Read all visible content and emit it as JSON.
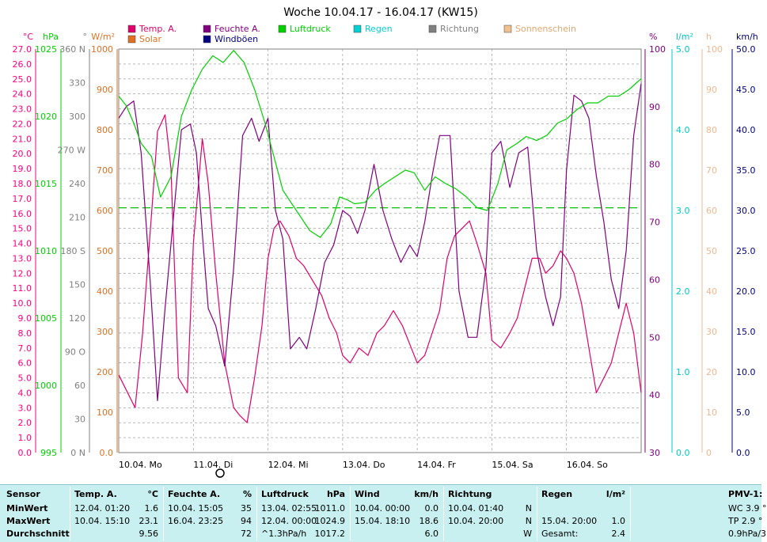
{
  "chart_data": {
    "type": "line",
    "title": "Woche 10.04.17 - 16.04.17 (KW15)",
    "x_labels": [
      "10.04. Mo",
      "11.04. Di",
      "12.04. Mi",
      "13.04. Do",
      "14.04. Fr",
      "15.04. Sa",
      "16.04. So"
    ],
    "axes": [
      {
        "unit": "°C",
        "color": "#ff0080",
        "range": [
          0,
          27
        ],
        "ticks": [
          "0.0",
          "1.0",
          "2.0",
          "3.0",
          "4.0",
          "5.0",
          "6.0",
          "7.0",
          "8.0",
          "9.0",
          "10.0",
          "11.0",
          "12.0",
          "13.0",
          "14.0",
          "15.0",
          "16.0",
          "17.0",
          "18.0",
          "19.0",
          "20.0",
          "21.0",
          "22.0",
          "23.0",
          "24.0",
          "25.0",
          "26.0",
          "27.0"
        ]
      },
      {
        "unit": "hPa",
        "color": "#00d000",
        "range": [
          995,
          1025
        ],
        "ticks": [
          "995",
          "1000",
          "1005",
          "1010",
          "1015",
          "1020",
          "1025"
        ]
      },
      {
        "unit": "°",
        "color": "#808080",
        "range": [
          0,
          360
        ],
        "ticks": [
          "0 N",
          "30",
          "60",
          "90 O",
          "120",
          "150",
          "180 S",
          "210",
          "240",
          "270 W",
          "300",
          "330",
          "360 N"
        ]
      },
      {
        "unit": "W/m²",
        "color": "#e07020",
        "range": [
          0,
          1000
        ],
        "ticks": [
          "0.0",
          "100",
          "200",
          "300",
          "400",
          "500",
          "600",
          "700",
          "800",
          "900",
          "1000"
        ]
      },
      {
        "unit": "%",
        "color": "#800080",
        "range": [
          30,
          100
        ],
        "ticks": [
          "30",
          "40",
          "50",
          "60",
          "70",
          "80",
          "90",
          "100"
        ]
      },
      {
        "unit": "l/m²",
        "color": "#00c8c8",
        "range": [
          0,
          5
        ],
        "ticks": [
          "0.0",
          "1.0",
          "2.0",
          "3.0",
          "4.0",
          "5.0"
        ]
      },
      {
        "unit": "h",
        "color": "#f0b890",
        "range": [
          0,
          100
        ],
        "ticks": [
          "0",
          "10",
          "20",
          "30",
          "40",
          "50",
          "60",
          "70",
          "80",
          "90",
          "100"
        ]
      },
      {
        "unit": "km/h",
        "color": "#000080",
        "range": [
          0,
          50
        ],
        "ticks": [
          "0.0",
          "5.0",
          "10.0",
          "15.0",
          "20.0",
          "25.0",
          "30.0",
          "35.0",
          "40.0",
          "45.0",
          "50.0"
        ]
      }
    ],
    "legend": [
      {
        "name": "Temp. A.",
        "color": "#e0006a"
      },
      {
        "name": "Solar",
        "color": "#e07020"
      },
      {
        "name": "Feuchte A.",
        "color": "#800080"
      },
      {
        "name": "Windböen",
        "color": "#000080"
      },
      {
        "name": "Luftdruck",
        "color": "#00d000"
      },
      {
        "name": "Regen",
        "color": "#00d0d0"
      },
      {
        "name": "Richtung",
        "color": "#808080"
      },
      {
        "name": "Sonnenschein",
        "color": "#f0c090"
      }
    ],
    "reference_line": {
      "series": "Luftdruck",
      "value": 1013.2
    },
    "series": [
      {
        "name": "Temp. A.",
        "axis": "°C",
        "x": [
          0,
          0.1,
          0.22,
          0.32,
          0.44,
          0.52,
          0.62,
          0.7,
          0.8,
          0.92,
          1.0,
          1.12,
          1.2,
          1.3,
          1.42,
          1.54,
          1.62,
          1.72,
          1.82,
          1.92,
          2.0,
          2.08,
          2.16,
          2.28,
          2.38,
          2.48,
          2.6,
          2.72,
          2.82,
          2.92,
          3.0,
          3.1,
          3.22,
          3.34,
          3.46,
          3.56,
          3.68,
          3.8,
          3.92,
          4.0,
          4.1,
          4.2,
          4.3,
          4.4,
          4.5,
          4.6,
          4.7,
          4.8,
          4.92,
          5.0,
          5.12,
          5.24,
          5.34,
          5.44,
          5.54,
          5.64,
          5.72,
          5.82,
          5.92,
          6.0,
          6.1,
          6.2,
          6.3,
          6.4,
          6.5,
          6.6,
          6.7,
          6.8,
          6.9,
          7.0
        ],
        "y": [
          5.2,
          4.2,
          3.0,
          8.0,
          16.0,
          21.5,
          22.6,
          19.0,
          5.0,
          4.0,
          14.0,
          21.0,
          18.0,
          12.0,
          6.0,
          3.0,
          2.5,
          2.0,
          5.0,
          8.5,
          13.0,
          15.0,
          15.5,
          14.5,
          13.0,
          12.5,
          11.5,
          10.5,
          9.0,
          8.0,
          6.5,
          6.0,
          7.0,
          6.5,
          8.0,
          8.5,
          9.5,
          8.5,
          7.0,
          6.0,
          6.5,
          8.0,
          9.5,
          13.0,
          14.5,
          15.0,
          15.5,
          14.0,
          12.0,
          7.5,
          7.0,
          8.0,
          9.0,
          11.0,
          13.0,
          13.0,
          12.0,
          12.5,
          13.5,
          13.0,
          12.0,
          10.0,
          7.0,
          4.0,
          5.0,
          6.0,
          8.0,
          10.0,
          8.0,
          4.0
        ]
      },
      {
        "name": "Feuchte A.",
        "axis": "%",
        "x": [
          0,
          0.1,
          0.2,
          0.3,
          0.42,
          0.52,
          0.62,
          0.72,
          0.84,
          0.96,
          1.04,
          1.12,
          1.2,
          1.3,
          1.42,
          1.54,
          1.66,
          1.78,
          1.88,
          2.0,
          2.1,
          2.2,
          2.3,
          2.42,
          2.52,
          2.64,
          2.76,
          2.88,
          3.0,
          3.1,
          3.2,
          3.3,
          3.42,
          3.54,
          3.66,
          3.78,
          3.9,
          4.0,
          4.1,
          4.2,
          4.3,
          4.44,
          4.56,
          4.68,
          4.8,
          4.92,
          5.0,
          5.12,
          5.24,
          5.36,
          5.48,
          5.6,
          5.72,
          5.82,
          5.92,
          6.0,
          6.1,
          6.2,
          6.3,
          6.4,
          6.5,
          6.6,
          6.7,
          6.8,
          6.9,
          7.0
        ],
        "y": [
          88,
          90,
          91,
          82,
          60,
          39,
          55,
          69,
          86,
          87,
          82,
          68,
          55,
          52,
          45,
          62,
          85,
          88,
          84,
          88,
          72,
          67,
          48,
          50,
          48,
          55,
          63,
          66,
          72,
          71,
          68,
          72,
          80,
          72,
          67,
          63,
          66,
          64,
          70,
          78,
          85,
          85,
          58,
          50,
          50,
          62,
          82,
          84,
          76,
          82,
          83,
          65,
          57,
          52,
          57,
          79,
          92,
          91,
          88,
          78,
          70,
          60,
          55,
          65,
          85,
          94
        ]
      },
      {
        "name": "Luftdruck",
        "axis": "hPa",
        "x": [
          0,
          0.1,
          0.2,
          0.3,
          0.44,
          0.56,
          0.7,
          0.84,
          0.98,
          1.12,
          1.26,
          1.4,
          1.54,
          1.68,
          1.82,
          1.96,
          2.08,
          2.2,
          2.32,
          2.44,
          2.56,
          2.7,
          2.84,
          2.96,
          3.06,
          3.16,
          3.3,
          3.44,
          3.56,
          3.7,
          3.84,
          3.96,
          4.1,
          4.24,
          4.38,
          4.52,
          4.66,
          4.8,
          4.94,
          5.08,
          5.2,
          5.34,
          5.46,
          5.6,
          5.74,
          5.88,
          6.0,
          6.14,
          6.28,
          6.42,
          6.56,
          6.7,
          6.84,
          6.94,
          7.0
        ],
        "y": [
          1021.5,
          1020.8,
          1019.5,
          1018.0,
          1017.0,
          1014.0,
          1015.5,
          1020.0,
          1022.0,
          1023.5,
          1024.5,
          1024.0,
          1024.9,
          1024.0,
          1022.0,
          1019.5,
          1017.0,
          1014.5,
          1013.5,
          1012.5,
          1011.5,
          1011.0,
          1012.0,
          1014.0,
          1013.8,
          1013.5,
          1013.6,
          1014.5,
          1015.0,
          1015.5,
          1016.0,
          1015.8,
          1014.5,
          1015.5,
          1015.0,
          1014.6,
          1014.0,
          1013.2,
          1013.0,
          1015.0,
          1017.5,
          1018.0,
          1018.5,
          1018.2,
          1018.6,
          1019.5,
          1019.8,
          1020.5,
          1021.0,
          1021.0,
          1021.5,
          1021.5,
          1022.0,
          1022.5,
          1022.8
        ]
      }
    ],
    "stats": {
      "headers": {
        "sensor": "Sensor",
        "temp": "Temp. A.",
        "temp_unit": "°C",
        "hum": "Feuchte A.",
        "hum_unit": "%",
        "press": "Luftdruck",
        "press_unit": "hPa",
        "wind": "Wind",
        "wind_unit": "km/h",
        "dir": "Richtung",
        "rain": "Regen",
        "rain_unit": "l/m²",
        "pmv": "PMV-1:"
      },
      "row_labels": [
        "MinWert",
        "MaxWert",
        "Durchschnitt"
      ],
      "temp": [
        [
          "12.04.  01:20",
          "1.6"
        ],
        [
          "10.04.  15:10",
          "23.1"
        ],
        [
          "",
          "9.56"
        ]
      ],
      "hum": [
        [
          "10.04.  15:05",
          "35"
        ],
        [
          "16.04.  23:25",
          "94"
        ],
        [
          "",
          "72"
        ]
      ],
      "press": [
        [
          "13.04.  02:55",
          "1011.0"
        ],
        [
          "12.04.  00:00",
          "1024.9"
        ],
        [
          "^1.3hPa/h",
          "1017.2"
        ]
      ],
      "wind": [
        [
          "10.04.  00:00",
          "0.0"
        ],
        [
          "15.04.  18:10",
          "18.6"
        ],
        [
          "",
          "6.0"
        ]
      ],
      "dir": [
        [
          "10.04.  01:40",
          "N"
        ],
        [
          "10.04.  20:00",
          "N"
        ],
        [
          "",
          "W"
        ]
      ],
      "rain": [
        [
          "",
          ""
        ],
        [
          "15.04.  20:00",
          "1.0"
        ],
        [
          "Gesamt:",
          "2.4"
        ]
      ],
      "pmv": [
        "WC 3.9 °",
        "TP 2.9 °",
        "0.9hPa/3"
      ]
    }
  }
}
